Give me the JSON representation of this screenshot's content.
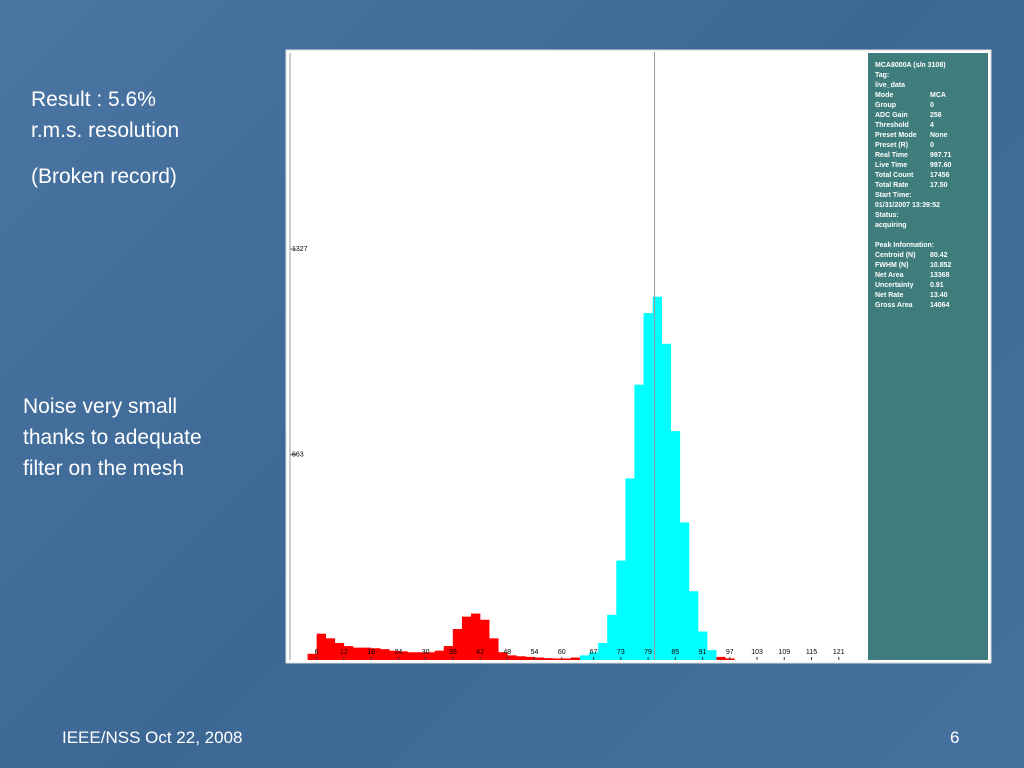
{
  "slide": {
    "notes": [
      "Result : 5.6%",
      "r.m.s. resolution",
      "(Broken record)"
    ],
    "remarks": [
      "Noise very small",
      "thanks to adequate",
      "filter on the mesh"
    ],
    "footer": "IEEE/NSS Oct 22, 2008",
    "page_number": "6"
  },
  "panel": {
    "acquisition": [
      [
        "MCA8000A (s/n 3108)"
      ],
      [
        "Tag:"
      ],
      [
        "live_data"
      ],
      [
        "Mode",
        "MCA"
      ],
      [
        "Group",
        "0"
      ],
      [
        "ADC Gain",
        "256"
      ],
      [
        "Threshold",
        "4"
      ],
      [
        "Preset Mode",
        "None"
      ],
      [
        "Preset (R)",
        "0"
      ],
      [
        "Real Time",
        "997.71"
      ],
      [
        "Live Time",
        "997.60"
      ],
      [
        "Total Count",
        "17456"
      ],
      [
        "Total Rate",
        "17.50"
      ],
      [
        "Start Time:"
      ],
      [
        "01/31/2007 13:39:52"
      ],
      [
        "Status:"
      ],
      [
        "acquiring"
      ]
    ],
    "peak": [
      [
        "Peak Information:"
      ],
      [
        "Centroid (N)",
        "80.42"
      ],
      [
        "FWHM (N)",
        "10.852"
      ],
      [
        "Net Area",
        "13368"
      ],
      [
        "Uncertainty",
        "0.91"
      ],
      [
        "Net Rate",
        "13.40"
      ],
      [
        "Gross Area",
        "14064"
      ]
    ]
  },
  "chart_data": {
    "type": "histogram",
    "bins": [
      4,
      6,
      8,
      10,
      12,
      14,
      16,
      18,
      20,
      22,
      24,
      26,
      28,
      30,
      32,
      34,
      36,
      38,
      40,
      42,
      44,
      46,
      48,
      50,
      52,
      54,
      56,
      58,
      60,
      62,
      64,
      66,
      68,
      70,
      72,
      74,
      76,
      78,
      80,
      82,
      84,
      86,
      88,
      90,
      92,
      94,
      96,
      98,
      100,
      102,
      104,
      106,
      108,
      110,
      112,
      114,
      116,
      118,
      120,
      122,
      124,
      126
    ],
    "series": [
      {
        "color": "#ff0000",
        "values": [
          20,
          85,
          70,
          55,
          45,
          40,
          40,
          38,
          35,
          30,
          28,
          25,
          25,
          25,
          30,
          45,
          100,
          140,
          150,
          130,
          70,
          25,
          15,
          12,
          10,
          8,
          6,
          5,
          5,
          8,
          0,
          0,
          0,
          0,
          0,
          0,
          0,
          0,
          0,
          0,
          0,
          0,
          0,
          0,
          0,
          10,
          5,
          0,
          0,
          0,
          0,
          0,
          0,
          0,
          0,
          0,
          0,
          0,
          0,
          0,
          0
        ]
      },
      {
        "color": "#00ffff",
        "values": [
          0,
          0,
          0,
          0,
          0,
          0,
          0,
          0,
          0,
          0,
          0,
          0,
          0,
          0,
          0,
          0,
          0,
          0,
          0,
          0,
          0,
          0,
          0,
          0,
          0,
          0,
          0,
          0,
          0,
          0,
          15,
          25,
          55,
          146,
          321,
          586,
          889,
          1120,
          1173,
          1021,
          739,
          444,
          222,
          92,
          32,
          0,
          0,
          0,
          0,
          0,
          0,
          0,
          0,
          0,
          0,
          0,
          0,
          0,
          0,
          0,
          0
        ]
      }
    ],
    "xlim": [
      3,
      127
    ],
    "xticks": [
      6,
      12,
      18,
      24,
      30,
      36,
      42,
      48,
      54,
      60,
      67,
      73,
      79,
      85,
      91,
      97,
      103,
      109,
      115,
      121
    ],
    "ylim": [
      0,
      1963
    ],
    "yticks": [
      663,
      1327
    ]
  }
}
